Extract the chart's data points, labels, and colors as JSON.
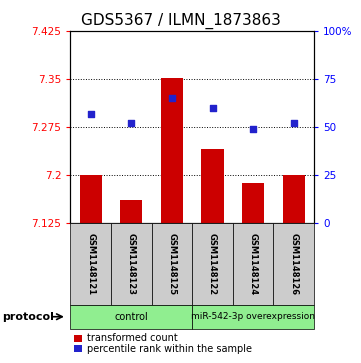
{
  "title": "GDS5367 / ILMN_1873863",
  "samples": [
    "GSM1148121",
    "GSM1148123",
    "GSM1148125",
    "GSM1148122",
    "GSM1148124",
    "GSM1148126"
  ],
  "bar_values": [
    7.2,
    7.162,
    7.352,
    7.24,
    7.187,
    7.2
  ],
  "bar_bottom": 7.125,
  "dot_values_pct": [
    57,
    52,
    65,
    60,
    49,
    52
  ],
  "ylim_left": [
    7.125,
    7.425
  ],
  "ylim_right": [
    0,
    100
  ],
  "yticks_left": [
    7.125,
    7.2,
    7.275,
    7.35,
    7.425
  ],
  "yticks_right": [
    0,
    25,
    50,
    75,
    100
  ],
  "ytick_labels_left": [
    "7.125",
    "7.2",
    "7.275",
    "7.35",
    "7.425"
  ],
  "ytick_labels_right": [
    "0",
    "25",
    "50",
    "75",
    "100%"
  ],
  "hlines": [
    7.35,
    7.275,
    7.2
  ],
  "bar_color": "#cc0000",
  "dot_color": "#2222cc",
  "protocol_label": "protocol",
  "legend_bar_label": "transformed count",
  "legend_dot_label": "percentile rank within the sample",
  "title_fontsize": 11,
  "tick_fontsize": 7.5,
  "sample_fontsize": 6,
  "protocol_fontsize": 7,
  "legend_fontsize": 7
}
